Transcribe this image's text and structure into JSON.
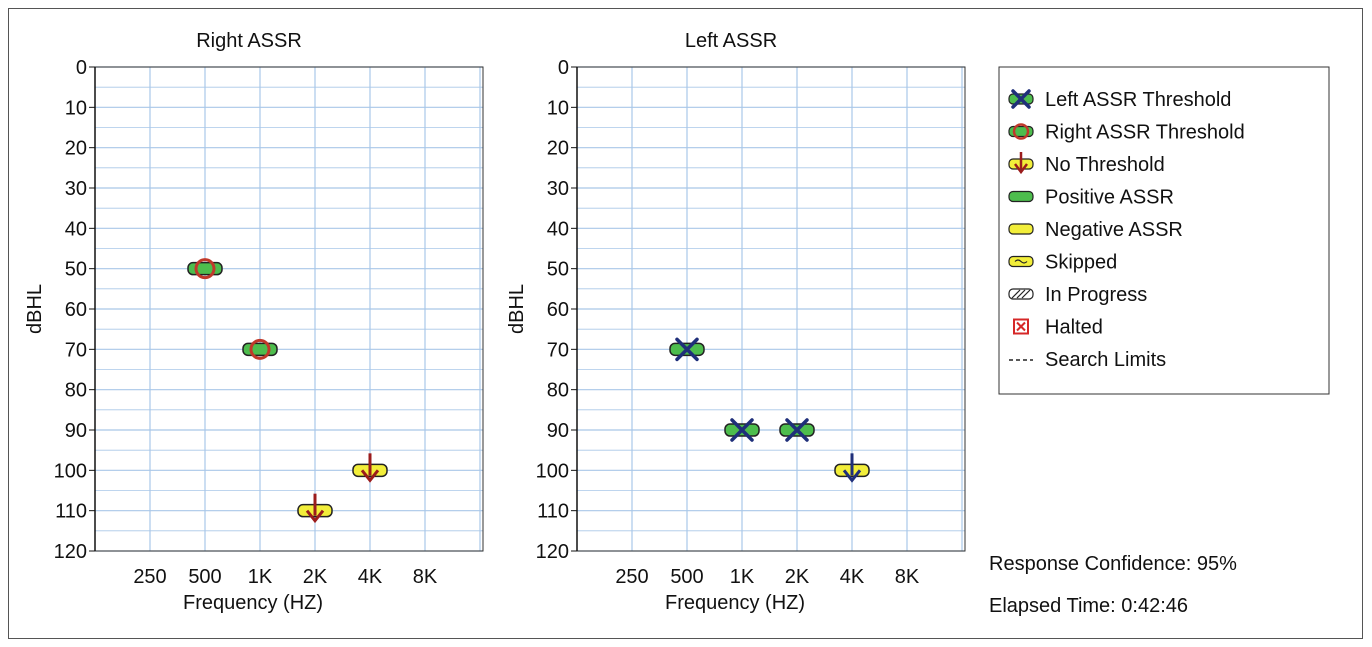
{
  "chart_data": [
    {
      "type": "scatter",
      "title": "Right ASSR",
      "xlabel": "Frequency (HZ)",
      "ylabel": "dBHL",
      "x_ticks": [
        "250",
        "500",
        "1K",
        "2K",
        "4K",
        "8K"
      ],
      "ylim": [
        0,
        120
      ],
      "y_ticks": [
        0,
        10,
        20,
        30,
        40,
        50,
        60,
        70,
        80,
        90,
        100,
        110,
        120
      ],
      "y_reversed": true,
      "grid": true,
      "points": [
        {
          "x": "500",
          "y": 50,
          "symbol": "right-threshold",
          "response": "positive"
        },
        {
          "x": "1K",
          "y": 70,
          "symbol": "right-threshold",
          "response": "positive"
        },
        {
          "x": "2K",
          "y": 110,
          "symbol": "no-threshold",
          "response": "negative"
        },
        {
          "x": "4K",
          "y": 100,
          "symbol": "no-threshold",
          "response": "negative"
        }
      ]
    },
    {
      "type": "scatter",
      "title": "Left ASSR",
      "xlabel": "Frequency (HZ)",
      "ylabel": "dBHL",
      "x_ticks": [
        "250",
        "500",
        "1K",
        "2K",
        "4K",
        "8K"
      ],
      "ylim": [
        0,
        120
      ],
      "y_ticks": [
        0,
        10,
        20,
        30,
        40,
        50,
        60,
        70,
        80,
        90,
        100,
        110,
        120
      ],
      "y_reversed": true,
      "grid": true,
      "points": [
        {
          "x": "500",
          "y": 70,
          "symbol": "left-threshold",
          "response": "positive"
        },
        {
          "x": "1K",
          "y": 90,
          "symbol": "left-threshold",
          "response": "positive"
        },
        {
          "x": "2K",
          "y": 90,
          "symbol": "left-threshold",
          "response": "positive"
        },
        {
          "x": "4K",
          "y": 100,
          "symbol": "no-threshold-left",
          "response": "negative"
        }
      ]
    }
  ],
  "legend": {
    "placement": "right",
    "items": [
      {
        "label": "Left ASSR Threshold",
        "icon": "left-threshold-icon"
      },
      {
        "label": "Right ASSR Threshold",
        "icon": "right-threshold-icon"
      },
      {
        "label": "No Threshold",
        "icon": "no-threshold-icon"
      },
      {
        "label": "Positive ASSR",
        "icon": "positive-assr-icon"
      },
      {
        "label": "Negative ASSR",
        "icon": "negative-assr-icon"
      },
      {
        "label": "Skipped",
        "icon": "skipped-icon"
      },
      {
        "label": "In Progress",
        "icon": "in-progress-icon"
      },
      {
        "label": "Halted",
        "icon": "halted-icon"
      },
      {
        "label": "Search Limits",
        "icon": "search-limits-icon"
      }
    ]
  },
  "info": {
    "confidence": "Response Confidence: 95%",
    "elapsed": "Elapsed Time: 0:42:46"
  },
  "colors": {
    "grid": "#a9c7e8",
    "positive": "#4dbd4d",
    "negative": "#f2ee3a",
    "right_marker": "#c0392b",
    "left_marker": "#1f2f7a",
    "arrow_right": "#9b1c1c",
    "halted": "#d62828"
  }
}
